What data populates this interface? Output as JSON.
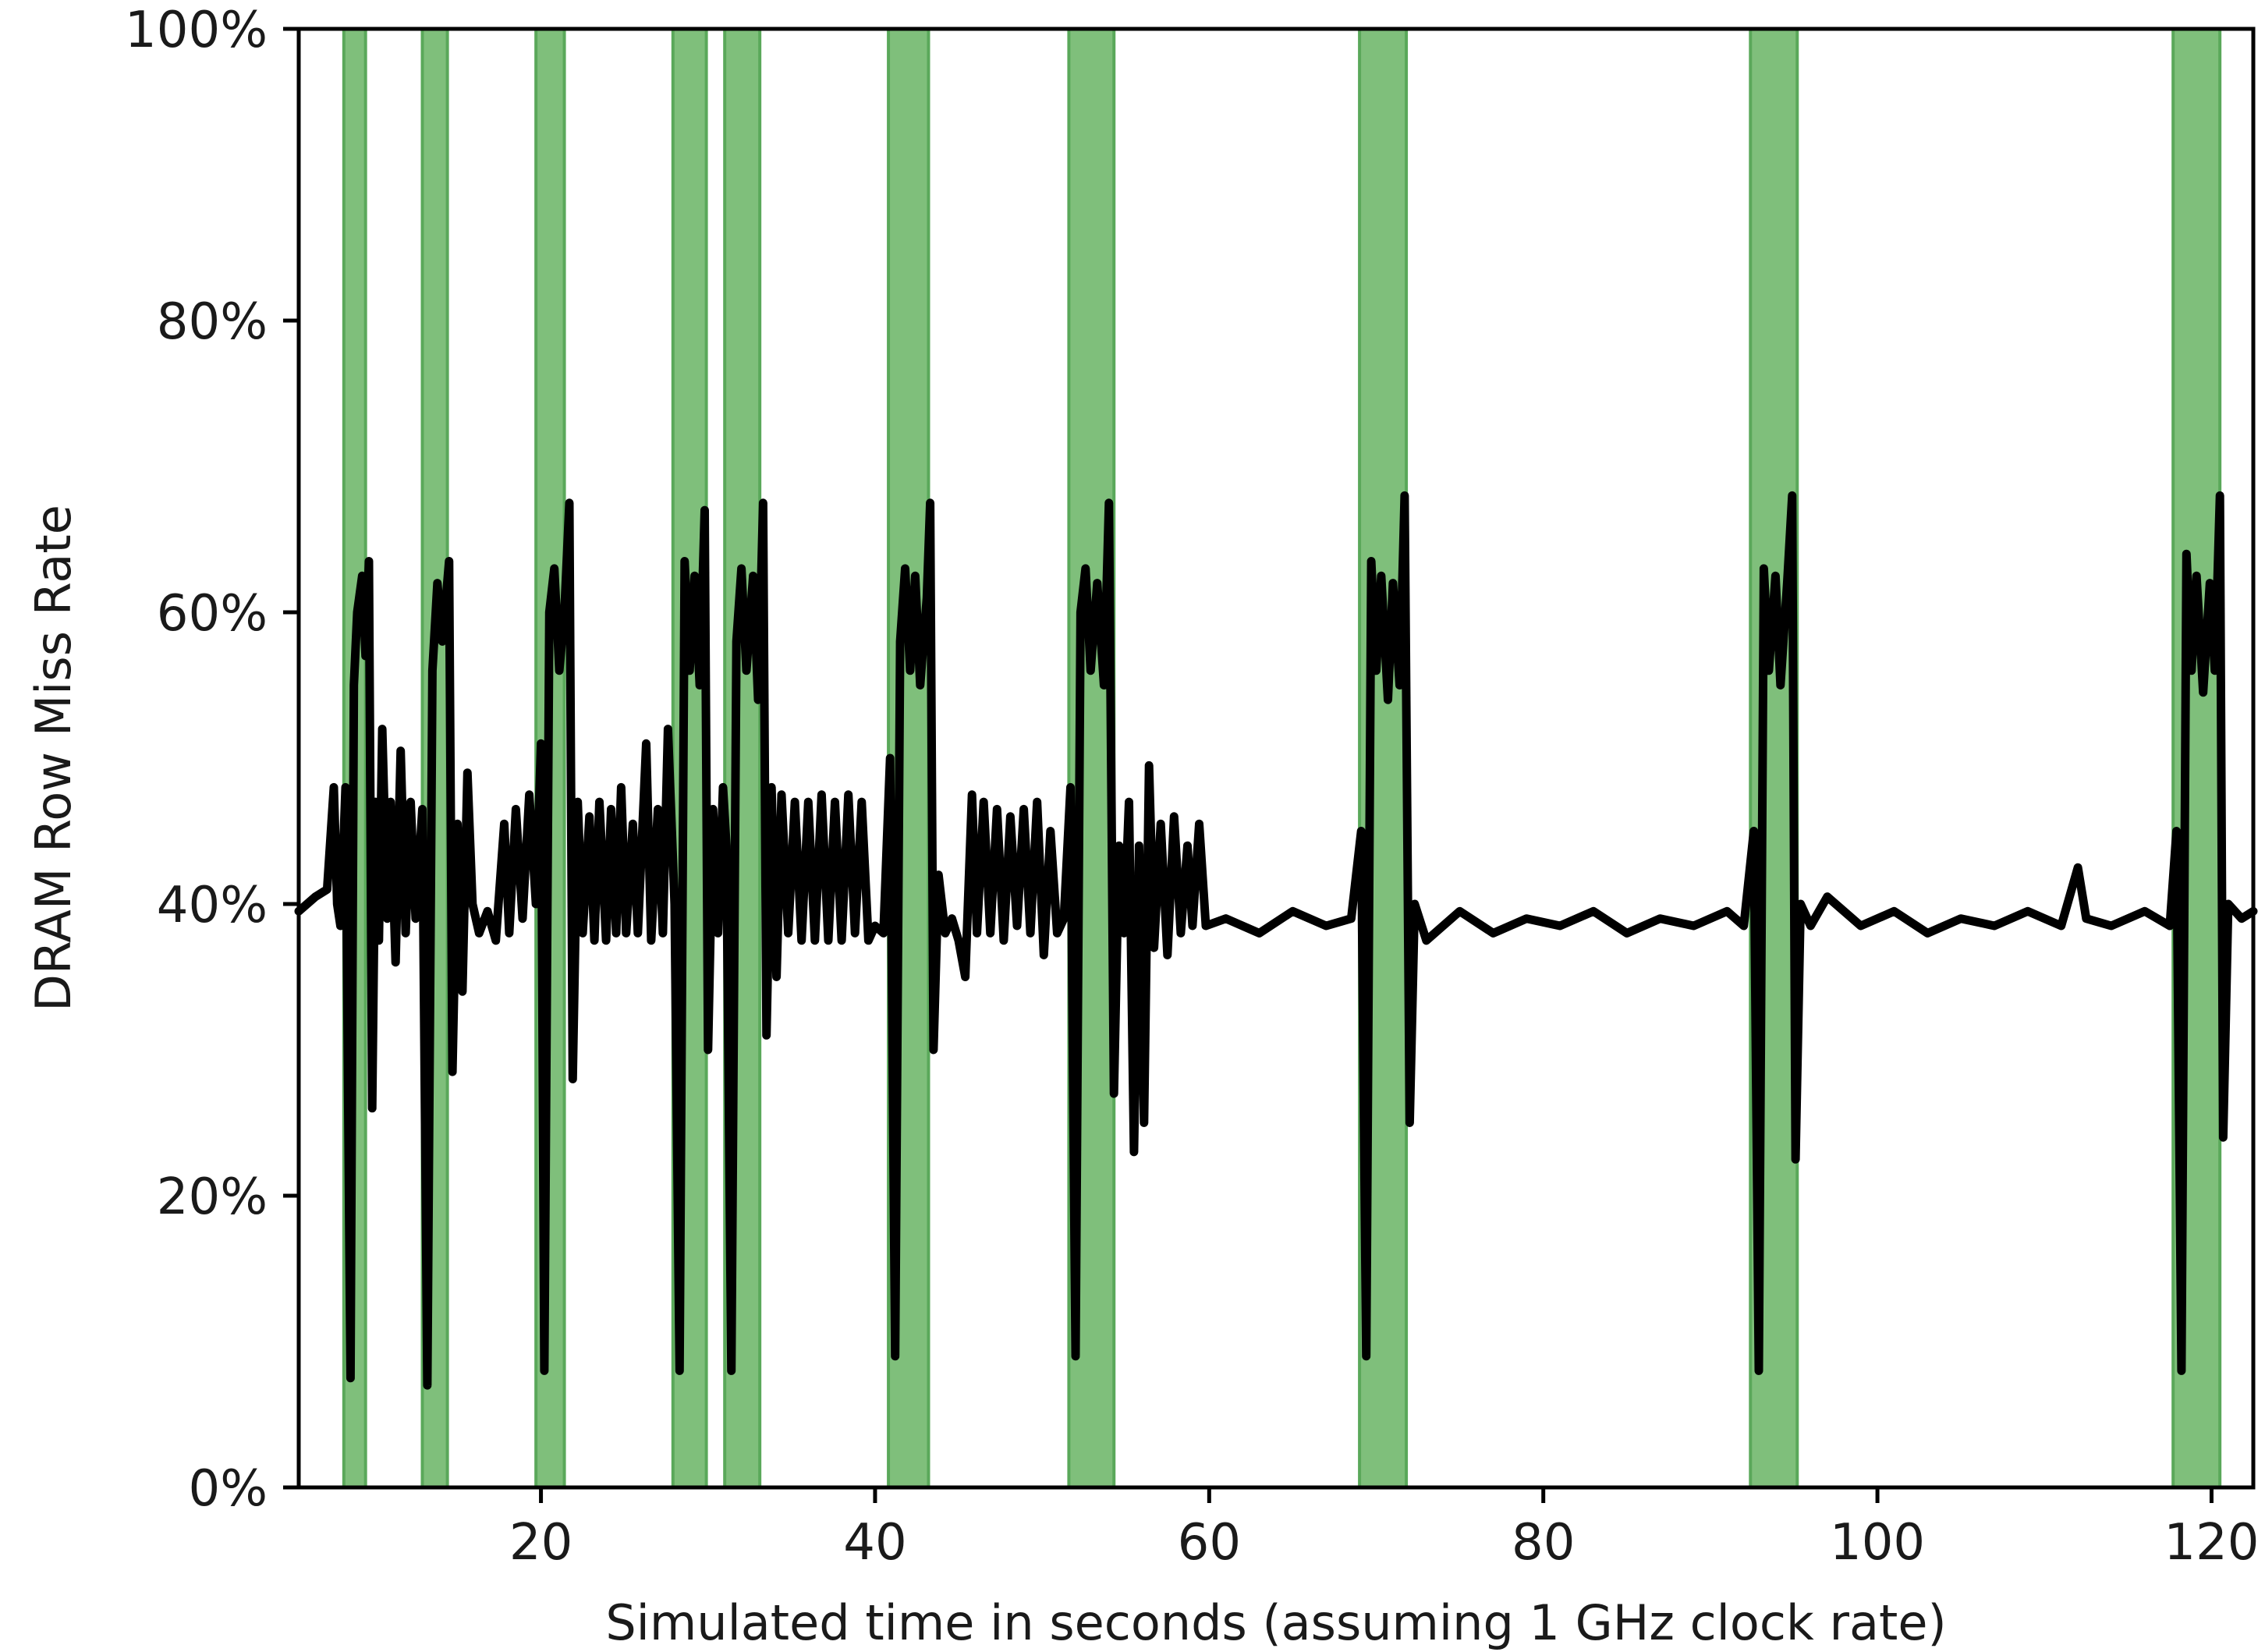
{
  "chart_data": {
    "type": "line",
    "xlabel": "Simulated time in seconds (assuming 1 GHz clock rate)",
    "ylabel": "DRAM Row Miss Rate",
    "xlim": [
      5.5,
      122.5
    ],
    "ylim": [
      0,
      100
    ],
    "x_ticks": [
      20,
      40,
      60,
      80,
      100,
      120
    ],
    "x_tick_labels": [
      "20",
      "40",
      "60",
      "80",
      "100",
      "120"
    ],
    "y_ticks": [
      0,
      20,
      40,
      60,
      80,
      100
    ],
    "y_tick_labels": [
      "0%",
      "20%",
      "40%",
      "60%",
      "80%",
      "100%"
    ],
    "grid": false,
    "colors": {
      "line": "#000000",
      "band_fill": "#7fbf7b",
      "band_edge": "#5aa85a",
      "axis": "#000000"
    },
    "highlight_spans": [
      [
        8.2,
        9.5
      ],
      [
        12.9,
        14.4
      ],
      [
        19.7,
        21.4
      ],
      [
        27.9,
        29.9
      ],
      [
        31.0,
        33.1
      ],
      [
        40.8,
        43.2
      ],
      [
        51.6,
        54.3
      ],
      [
        69.0,
        71.8
      ],
      [
        92.4,
        95.2
      ],
      [
        117.7,
        120.5
      ]
    ],
    "series": [
      {
        "values": [
          [
            5.5,
            39.5
          ],
          [
            6.5,
            40.5
          ],
          [
            7.2,
            41.0
          ],
          [
            7.6,
            48.0
          ],
          [
            7.8,
            40.0
          ],
          [
            8.0,
            38.5
          ],
          [
            8.3,
            48.0
          ],
          [
            8.6,
            7.5
          ],
          [
            8.8,
            55.0
          ],
          [
            9.0,
            60.0
          ],
          [
            9.3,
            62.5
          ],
          [
            9.5,
            57.0
          ],
          [
            9.7,
            63.5
          ],
          [
            9.9,
            26.0
          ],
          [
            10.1,
            47.0
          ],
          [
            10.3,
            37.5
          ],
          [
            10.5,
            52.0
          ],
          [
            10.8,
            39.0
          ],
          [
            11.0,
            47.0
          ],
          [
            11.3,
            36.0
          ],
          [
            11.6,
            50.5
          ],
          [
            11.9,
            38.0
          ],
          [
            12.2,
            47.0
          ],
          [
            12.5,
            39.0
          ],
          [
            12.9,
            46.5
          ],
          [
            13.2,
            7.0
          ],
          [
            13.5,
            56.0
          ],
          [
            13.8,
            62.0
          ],
          [
            14.1,
            58.0
          ],
          [
            14.5,
            63.5
          ],
          [
            14.7,
            28.5
          ],
          [
            15.0,
            45.5
          ],
          [
            15.3,
            34.0
          ],
          [
            15.6,
            49.0
          ],
          [
            15.9,
            40.0
          ],
          [
            16.3,
            38.0
          ],
          [
            16.8,
            39.5
          ],
          [
            17.3,
            37.5
          ],
          [
            17.8,
            45.5
          ],
          [
            18.1,
            38.0
          ],
          [
            18.5,
            46.5
          ],
          [
            18.9,
            39.0
          ],
          [
            19.3,
            47.5
          ],
          [
            19.7,
            40.0
          ],
          [
            20.0,
            51.0
          ],
          [
            20.2,
            8.0
          ],
          [
            20.5,
            60.0
          ],
          [
            20.8,
            63.0
          ],
          [
            21.1,
            56.0
          ],
          [
            21.4,
            60.0
          ],
          [
            21.7,
            67.5
          ],
          [
            21.9,
            28.0
          ],
          [
            22.2,
            47.0
          ],
          [
            22.5,
            38.0
          ],
          [
            22.9,
            46.0
          ],
          [
            23.2,
            37.5
          ],
          [
            23.5,
            47.0
          ],
          [
            23.9,
            37.5
          ],
          [
            24.2,
            46.5
          ],
          [
            24.5,
            38.0
          ],
          [
            24.8,
            48.0
          ],
          [
            25.1,
            38.0
          ],
          [
            25.5,
            45.5
          ],
          [
            25.8,
            38.0
          ],
          [
            26.3,
            51.0
          ],
          [
            26.6,
            37.5
          ],
          [
            27.0,
            46.5
          ],
          [
            27.3,
            38.0
          ],
          [
            27.6,
            52.0
          ],
          [
            28.0,
            40.0
          ],
          [
            28.3,
            8.0
          ],
          [
            28.6,
            63.5
          ],
          [
            28.9,
            56.0
          ],
          [
            29.2,
            62.5
          ],
          [
            29.5,
            55.0
          ],
          [
            29.8,
            67.0
          ],
          [
            30.0,
            30.0
          ],
          [
            30.3,
            46.5
          ],
          [
            30.6,
            38.0
          ],
          [
            30.9,
            48.0
          ],
          [
            31.1,
            44.0
          ],
          [
            31.4,
            8.0
          ],
          [
            31.7,
            58.0
          ],
          [
            32.0,
            63.0
          ],
          [
            32.3,
            56.0
          ],
          [
            32.7,
            62.5
          ],
          [
            33.0,
            54.0
          ],
          [
            33.3,
            67.5
          ],
          [
            33.5,
            31.0
          ],
          [
            33.8,
            48.0
          ],
          [
            34.1,
            35.0
          ],
          [
            34.4,
            47.5
          ],
          [
            34.8,
            38.0
          ],
          [
            35.2,
            47.0
          ],
          [
            35.6,
            37.5
          ],
          [
            36.0,
            47.0
          ],
          [
            36.4,
            37.5
          ],
          [
            36.8,
            47.5
          ],
          [
            37.2,
            37.5
          ],
          [
            37.6,
            47.0
          ],
          [
            38.0,
            37.5
          ],
          [
            38.4,
            47.5
          ],
          [
            38.8,
            38.0
          ],
          [
            39.2,
            47.0
          ],
          [
            39.6,
            37.5
          ],
          [
            40.0,
            38.5
          ],
          [
            40.5,
            38.0
          ],
          [
            40.9,
            50.0
          ],
          [
            41.2,
            9.0
          ],
          [
            41.5,
            58.0
          ],
          [
            41.8,
            63.0
          ],
          [
            42.1,
            56.0
          ],
          [
            42.4,
            62.5
          ],
          [
            42.7,
            55.0
          ],
          [
            43.1,
            61.0
          ],
          [
            43.3,
            67.5
          ],
          [
            43.5,
            30.0
          ],
          [
            43.8,
            42.0
          ],
          [
            44.2,
            38.0
          ],
          [
            44.6,
            39.0
          ],
          [
            45.0,
            37.5
          ],
          [
            45.4,
            35.0
          ],
          [
            45.8,
            47.5
          ],
          [
            46.1,
            38.0
          ],
          [
            46.5,
            47.0
          ],
          [
            46.9,
            38.0
          ],
          [
            47.3,
            46.5
          ],
          [
            47.7,
            37.5
          ],
          [
            48.1,
            46.0
          ],
          [
            48.5,
            38.5
          ],
          [
            48.9,
            46.5
          ],
          [
            49.3,
            38.0
          ],
          [
            49.7,
            47.0
          ],
          [
            50.1,
            36.5
          ],
          [
            50.5,
            45.0
          ],
          [
            50.9,
            38.0
          ],
          [
            51.3,
            39.0
          ],
          [
            51.7,
            48.0
          ],
          [
            52.0,
            9.0
          ],
          [
            52.3,
            60.0
          ],
          [
            52.6,
            63.0
          ],
          [
            52.9,
            56.0
          ],
          [
            53.3,
            62.0
          ],
          [
            53.7,
            55.0
          ],
          [
            54.0,
            67.5
          ],
          [
            54.3,
            27.0
          ],
          [
            54.6,
            44.0
          ],
          [
            54.9,
            38.0
          ],
          [
            55.2,
            47.0
          ],
          [
            55.5,
            23.0
          ],
          [
            55.8,
            44.0
          ],
          [
            56.1,
            25.0
          ],
          [
            56.4,
            49.5
          ],
          [
            56.7,
            37.0
          ],
          [
            57.1,
            45.5
          ],
          [
            57.5,
            36.5
          ],
          [
            57.9,
            46.0
          ],
          [
            58.3,
            38.0
          ],
          [
            58.7,
            44.0
          ],
          [
            59.0,
            38.5
          ],
          [
            59.4,
            45.5
          ],
          [
            59.8,
            38.5
          ],
          [
            61.0,
            39.0
          ],
          [
            63.0,
            38.0
          ],
          [
            65.0,
            39.5
          ],
          [
            67.0,
            38.5
          ],
          [
            68.5,
            39.0
          ],
          [
            69.1,
            45.0
          ],
          [
            69.4,
            9.0
          ],
          [
            69.7,
            63.5
          ],
          [
            70.0,
            56.0
          ],
          [
            70.3,
            62.5
          ],
          [
            70.7,
            54.0
          ],
          [
            71.0,
            62.0
          ],
          [
            71.4,
            55.0
          ],
          [
            71.7,
            68.0
          ],
          [
            72.0,
            25.0
          ],
          [
            72.3,
            40.0
          ],
          [
            73.0,
            37.5
          ],
          [
            75.0,
            39.5
          ],
          [
            77.0,
            38.0
          ],
          [
            79.0,
            39.0
          ],
          [
            81.0,
            38.5
          ],
          [
            83.0,
            39.5
          ],
          [
            85.0,
            38.0
          ],
          [
            87.0,
            39.0
          ],
          [
            89.0,
            38.5
          ],
          [
            91.0,
            39.5
          ],
          [
            92.0,
            38.5
          ],
          [
            92.6,
            45.0
          ],
          [
            92.9,
            8.0
          ],
          [
            93.2,
            63.0
          ],
          [
            93.5,
            56.0
          ],
          [
            93.9,
            62.5
          ],
          [
            94.2,
            55.0
          ],
          [
            94.6,
            62.0
          ],
          [
            94.9,
            68.0
          ],
          [
            95.1,
            22.5
          ],
          [
            95.4,
            40.0
          ],
          [
            96.0,
            38.5
          ],
          [
            97.0,
            40.5
          ],
          [
            99.0,
            38.5
          ],
          [
            101.0,
            39.5
          ],
          [
            103.0,
            38.0
          ],
          [
            105.0,
            39.0
          ],
          [
            107.0,
            38.5
          ],
          [
            109.0,
            39.5
          ],
          [
            111.0,
            38.5
          ],
          [
            112.0,
            42.5
          ],
          [
            112.5,
            39.0
          ],
          [
            114.0,
            38.5
          ],
          [
            116.0,
            39.5
          ],
          [
            117.5,
            38.5
          ],
          [
            117.9,
            45.0
          ],
          [
            118.2,
            8.0
          ],
          [
            118.5,
            64.0
          ],
          [
            118.8,
            56.0
          ],
          [
            119.1,
            62.5
          ],
          [
            119.5,
            54.5
          ],
          [
            119.9,
            62.0
          ],
          [
            120.2,
            56.0
          ],
          [
            120.5,
            68.0
          ],
          [
            120.7,
            24.0
          ],
          [
            121.0,
            40.0
          ],
          [
            121.8,
            39.0
          ],
          [
            122.5,
            39.5
          ]
        ]
      }
    ]
  }
}
